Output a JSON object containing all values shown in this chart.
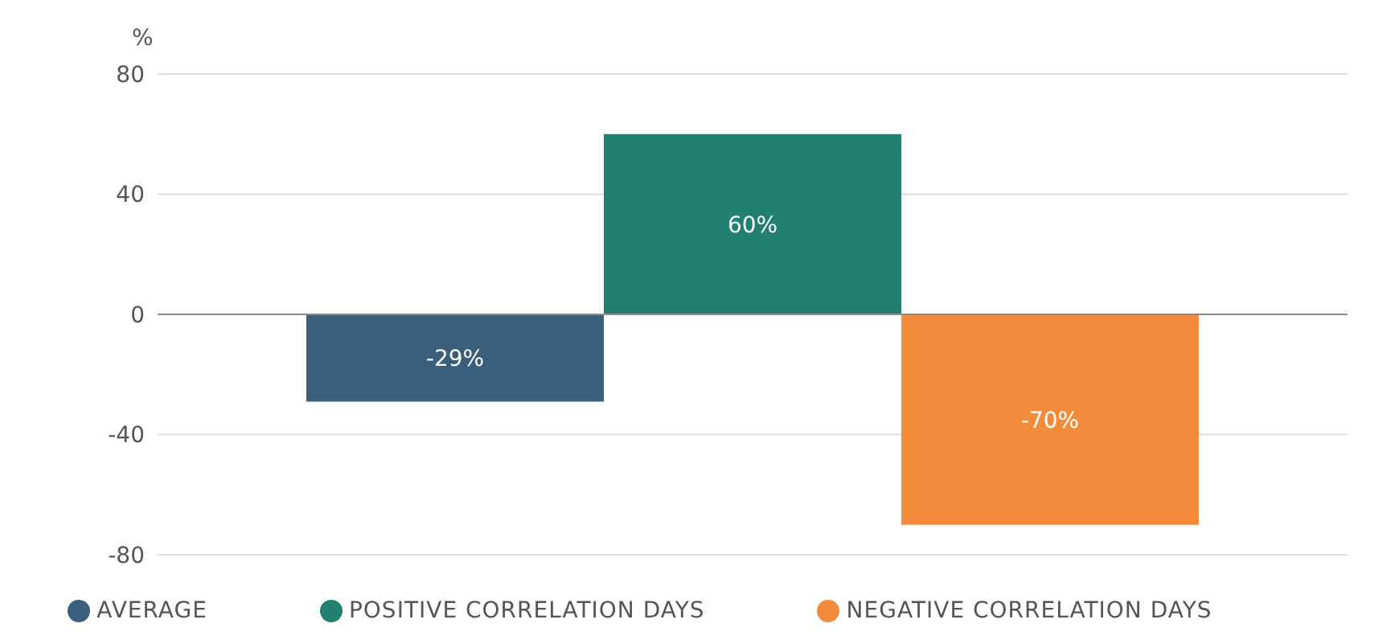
{
  "chart_data": {
    "type": "bar",
    "ylabel": "%",
    "categories": [
      null
    ],
    "series": [
      {
        "name": "AVERAGE",
        "color": "#3a5f7c",
        "values": [
          -29
        ],
        "value_labels": [
          "-29%"
        ]
      },
      {
        "name": "POSITIVE CORRELATION DAYS",
        "color": "#218070",
        "values": [
          60
        ],
        "value_labels": [
          "60%"
        ]
      },
      {
        "name": "NEGATIVE CORRELATION DAYS",
        "color": "#f28c3c",
        "values": [
          -70
        ],
        "value_labels": [
          "-70%"
        ]
      }
    ],
    "ylim": [
      -80,
      80
    ],
    "yticks": [
      -80,
      -40,
      0,
      40,
      80
    ],
    "grid": "y",
    "legend": "bottom",
    "ref_lines": [
      {
        "axis": "y",
        "value": 0,
        "color": "#8c8c8c"
      }
    ]
  }
}
